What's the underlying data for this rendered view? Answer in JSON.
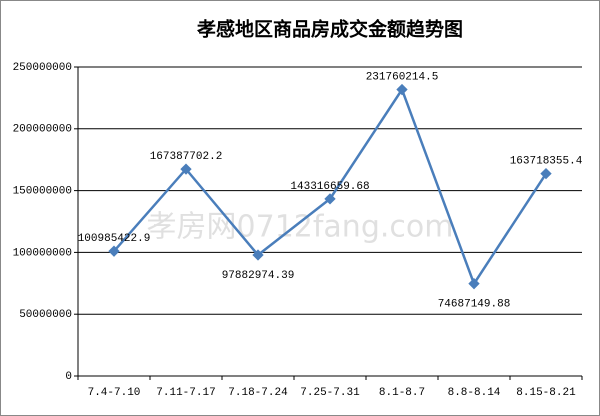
{
  "chart_data": {
    "type": "line",
    "title": "孝感地区商品房成交金额趋势图",
    "watermark": "孝房网0712fang.com",
    "categories": [
      "7.4-7.10",
      "7.11-7.17",
      "7.18-7.24",
      "7.25-7.31",
      "8.1-8.7",
      "8.8-8.14",
      "8.15-8.21"
    ],
    "values": [
      100985422.9,
      167387702.2,
      97882974.39,
      143316659.68,
      231760214.5,
      74687149.88,
      163718355.4
    ],
    "color": "#4a7ebb",
    "ylim": [
      0,
      250000000
    ],
    "yticks": [
      0,
      50000000,
      100000000,
      150000000,
      200000000,
      250000000
    ],
    "grid": true
  }
}
